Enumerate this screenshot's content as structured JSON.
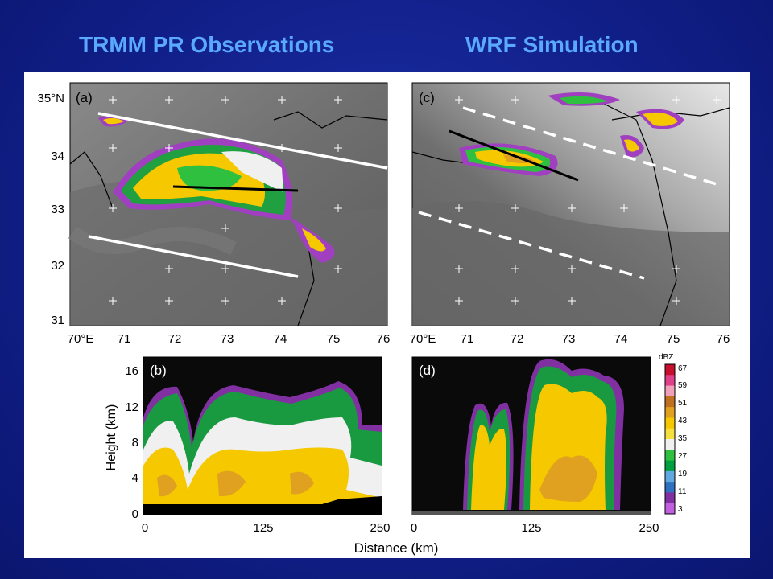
{
  "slide": {
    "title_left": "TRMM PR Observations",
    "title_right": "WRF Simulation"
  },
  "maps": {
    "panel_a_label": "(a)",
    "panel_c_label": "(c)",
    "lat_ticks": [
      "35°N",
      "34",
      "33",
      "32",
      "31"
    ],
    "lon_ticks": [
      "70°E",
      "71",
      "72",
      "73",
      "74",
      "75",
      "76"
    ]
  },
  "sections": {
    "panel_b_label": "(b)",
    "panel_d_label": "(d)",
    "ylabel": "Height (km)",
    "xlabel": "Distance (km)",
    "height_ticks": [
      "0",
      "4",
      "8",
      "12",
      "16"
    ],
    "distance_ticks": [
      "0",
      "125",
      "250"
    ]
  },
  "colorbar": {
    "unit": "dBZ",
    "tick_labels": [
      "67",
      "59",
      "51",
      "43",
      "35",
      "27",
      "19",
      "11",
      "3"
    ],
    "colors": [
      "#c8102e",
      "#e0408a",
      "#f0a0b8",
      "#c07020",
      "#e0a020",
      "#f5c800",
      "#f5e040",
      "#f0f0f0",
      "#30c040",
      "#00a040",
      "#60a8e0",
      "#3070c0",
      "#8030a0",
      "#c060e0"
    ]
  }
}
